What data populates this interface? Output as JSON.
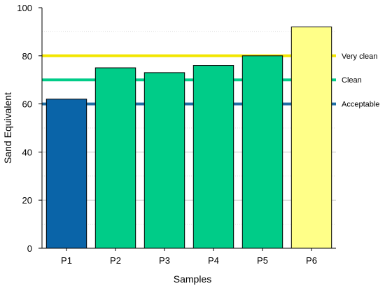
{
  "chart_data": {
    "type": "bar",
    "title": "",
    "xlabel": "Samples",
    "ylabel": "Sand Equivalent",
    "categories": [
      "P1",
      "P2",
      "P3",
      "P4",
      "P5",
      "P6"
    ],
    "values": [
      62,
      75,
      73,
      76,
      80,
      92
    ],
    "bar_colors": [
      "#0a64a8",
      "#00cc88",
      "#00cc88",
      "#00cc88",
      "#00cc88",
      "#ffff88"
    ],
    "ylim": [
      0,
      100
    ],
    "yticks": [
      0,
      20,
      40,
      60,
      80,
      100
    ],
    "grid": true,
    "reference_lines": [
      {
        "label": "Very clean",
        "value": 80,
        "color": "#f2e600"
      },
      {
        "label": "Clean",
        "value": 70,
        "color": "#00cc88"
      },
      {
        "label": "Acceptable",
        "value": 60,
        "color": "#1f6fa5"
      }
    ]
  }
}
